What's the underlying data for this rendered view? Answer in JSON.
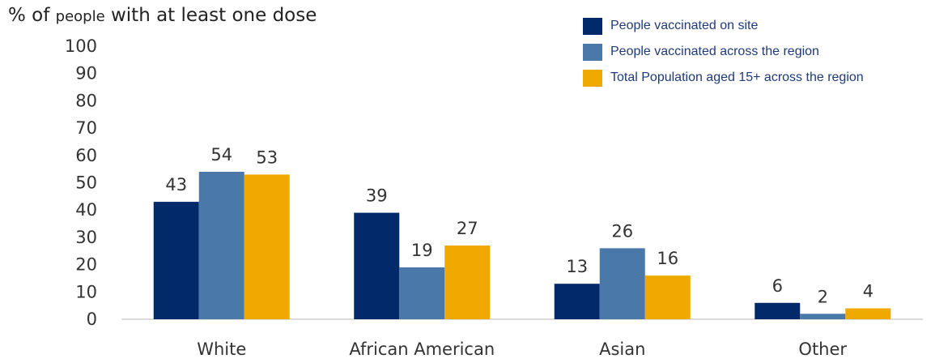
{
  "chart_data": {
    "type": "bar",
    "ylabel_prefix": "% of ",
    "ylabel_small": "people",
    "ylabel_suffix": " with at least one dose",
    "categories": [
      "White",
      "African American",
      "Asian",
      "Other"
    ],
    "series": [
      {
        "name": "People vaccinated on site",
        "color": "#022a6b",
        "values": [
          43,
          39,
          13,
          6
        ]
      },
      {
        "name": "People vaccinated across the region",
        "color": "#4a78a8",
        "values": [
          54,
          19,
          26,
          2
        ]
      },
      {
        "name": "Total Population aged 15+ across the region",
        "color": "#f0a900",
        "values": [
          53,
          27,
          16,
          4
        ]
      }
    ],
    "ylim": [
      0,
      100
    ],
    "yticks": [
      0,
      10,
      20,
      30,
      40,
      50,
      60,
      70,
      80,
      90,
      100
    ],
    "legend_position": "top-right",
    "grid": false
  }
}
